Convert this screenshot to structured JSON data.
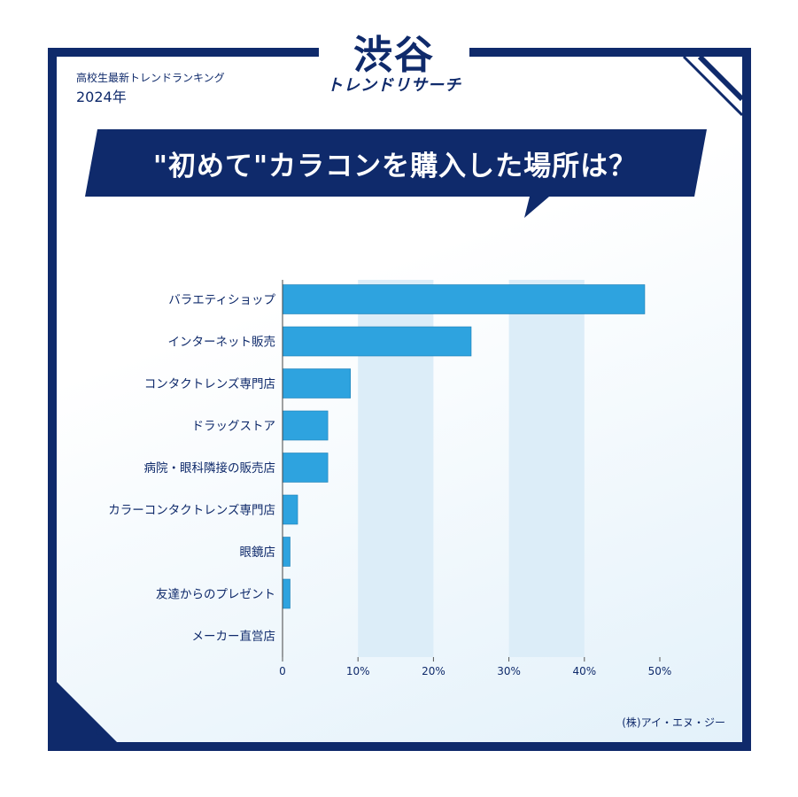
{
  "header": {
    "subtitle": "高校生最新トレンドランキング",
    "year": "2024年",
    "logo_main": "渋谷",
    "logo_sub": "トレンドリサーチ"
  },
  "footer": {
    "source": "(株)アイ・エヌ・ジー"
  },
  "colors": {
    "navy": "#0f2a6b",
    "bar": "#2ea3df",
    "band": "#dcedf8"
  },
  "chart_data": {
    "type": "bar",
    "orientation": "horizontal",
    "title": "\"初めて\"カラコンを購入した場所は？",
    "categories": [
      "バラエティショップ",
      "インターネット販売",
      "コンタクトレンズ専門店",
      "ドラッグストア",
      "病院・眼科隣接の販売店",
      "カラーコンタクトレンズ専門店",
      "眼鏡店",
      "友達からのプレゼント",
      "メーカー直営店"
    ],
    "values": [
      48,
      25,
      9,
      6,
      6,
      2,
      1,
      1,
      0
    ],
    "xlim": [
      0,
      50
    ],
    "xticks": [
      "0",
      "10%",
      "20%",
      "30%",
      "40%",
      "50%"
    ],
    "xlabel": "",
    "ylabel": "",
    "legend": "none"
  }
}
